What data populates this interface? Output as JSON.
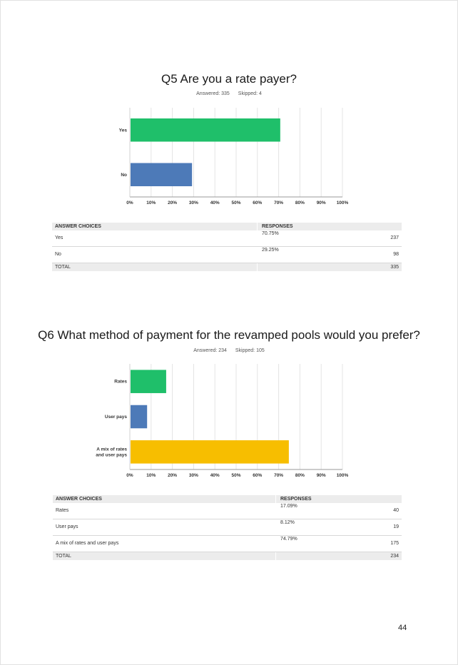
{
  "page_number": "44",
  "questions": [
    {
      "title": "Q5 Are you a rate payer?",
      "answered_label": "Answered: 335",
      "skipped_label": "Skipped: 4",
      "table": {
        "header_choice": "ANSWER CHOICES",
        "header_responses": "RESPONSES",
        "rows": [
          {
            "label": "Yes",
            "pct": "70.75%",
            "count": "237"
          },
          {
            "label": "No",
            "pct": "29.25%",
            "count": "98"
          }
        ],
        "total_label": "TOTAL",
        "total_count": "335"
      }
    },
    {
      "title": "Q6 What method of payment for the revamped pools would you prefer?",
      "answered_label": "Answered: 234",
      "skipped_label": "Skipped: 105",
      "table": {
        "header_choice": "ANSWER CHOICES",
        "header_responses": "RESPONSES",
        "rows": [
          {
            "label": "Rates",
            "pct": "17.09%",
            "count": "40"
          },
          {
            "label": "User pays",
            "pct": "8.12%",
            "count": "19"
          },
          {
            "label": "A mix of rates and user pays",
            "pct": "74.79%",
            "count": "175"
          }
        ],
        "total_label": "TOTAL",
        "total_count": "234"
      }
    }
  ],
  "chart_data": [
    {
      "type": "bar",
      "orientation": "horizontal",
      "title": "Q5 Are you a rate payer?",
      "categories": [
        [
          "Yes"
        ],
        [
          "No"
        ]
      ],
      "values": [
        70.75,
        29.25
      ],
      "colors": [
        "#1fbf6a",
        "#4d7ab8"
      ],
      "xlim": [
        0,
        100
      ],
      "xticks": [
        "0%",
        "10%",
        "20%",
        "30%",
        "40%",
        "50%",
        "60%",
        "70%",
        "80%",
        "90%",
        "100%"
      ],
      "grid": true,
      "xlabel": "",
      "ylabel": ""
    },
    {
      "type": "bar",
      "orientation": "horizontal",
      "title": "Q6 What method of payment for the revamped pools would you prefer?",
      "categories": [
        [
          "Rates"
        ],
        [
          "User pays"
        ],
        [
          "A mix of rates",
          "and user pays"
        ]
      ],
      "values": [
        17.09,
        8.12,
        74.79
      ],
      "colors": [
        "#1fbf6a",
        "#4d7ab8",
        "#f7be00"
      ],
      "xlim": [
        0,
        100
      ],
      "xticks": [
        "0%",
        "10%",
        "20%",
        "30%",
        "40%",
        "50%",
        "60%",
        "70%",
        "80%",
        "90%",
        "100%"
      ],
      "grid": true,
      "xlabel": "",
      "ylabel": ""
    }
  ]
}
